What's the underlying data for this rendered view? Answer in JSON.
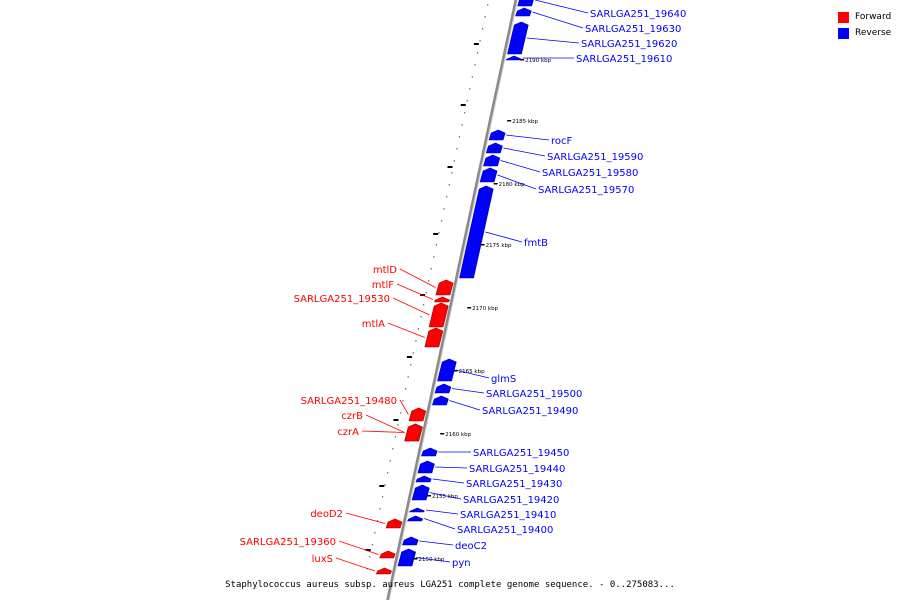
{
  "legend": {
    "forward_label": "Forward",
    "reverse_label": "Reverse",
    "forward_color": "#ff0000",
    "reverse_color": "#0000ff"
  },
  "caption": "Staphylococcus aureus subsp. aureus LGA251 complete genome sequence. - 0..275083...",
  "ruler_labels": [
    "2190 kbp",
    "2185 kbp",
    "2180 kbp",
    "2175 kbp",
    "2170 kbp",
    "2165 kbp",
    "2160 kbp",
    "2155 kbp",
    "2150 kbp"
  ],
  "genes_reverse": [
    "SARLGA251_19640",
    "SARLGA251_19630",
    "SARLGA251_19620",
    "SARLGA251_19610",
    "rocF",
    "SARLGA251_19590",
    "SARLGA251_19580",
    "SARLGA251_19570",
    "fmtB",
    "glmS",
    "SARLGA251_19500",
    "SARLGA251_19490",
    "SARLGA251_19450",
    "SARLGA251_19440",
    "SARLGA251_19430",
    "SARLGA251_19420",
    "SARLGA251_19410",
    "SARLGA251_19400",
    "deoC2",
    "pyn"
  ],
  "genes_forward": [
    "mtlD",
    "mtlF",
    "SARLGA251_19530",
    "mtlA",
    "SARLGA251_19480",
    "czrB",
    "czrA",
    "deoD2",
    "SARLGA251_19360",
    "luxS"
  ]
}
